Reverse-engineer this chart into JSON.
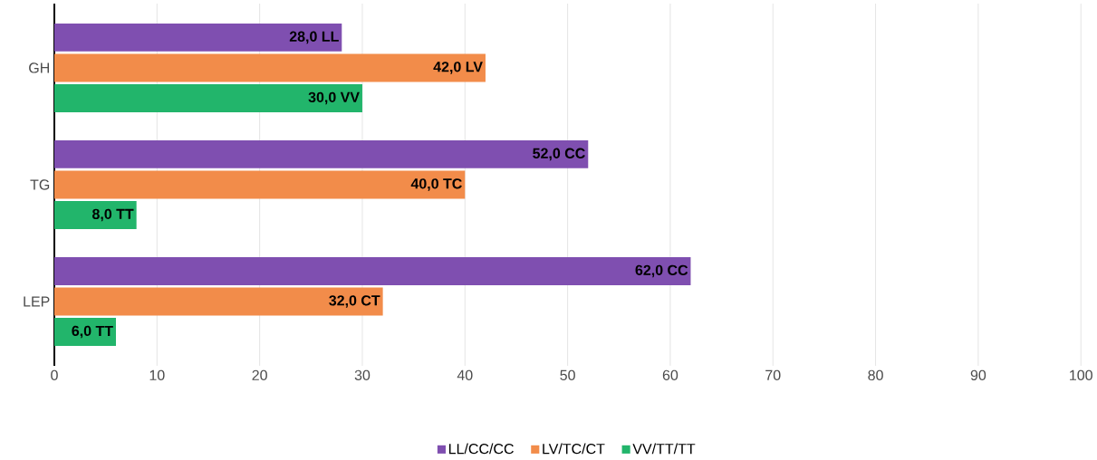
{
  "chart_data": {
    "type": "bar",
    "orientation": "horizontal",
    "categories": [
      "GH",
      "TG",
      "LEP"
    ],
    "series": [
      {
        "name": "LL/CC/CC",
        "color": "#7f4fb0",
        "values": [
          28,
          52,
          62
        ],
        "value_labels": [
          "28,0 LL",
          "52,0 CC",
          "62,0 CC"
        ]
      },
      {
        "name": "LV/TC/CT",
        "color": "#f28c4a",
        "values": [
          42,
          40,
          32
        ],
        "value_labels": [
          "42,0 LV",
          "40,0 TC",
          "32,0 CT"
        ]
      },
      {
        "name": "VV/TT/TT",
        "color": "#22b56b",
        "values": [
          30,
          8,
          6
        ],
        "value_labels": [
          "30,0 VV",
          "8,0 TT",
          "6,0 TT"
        ]
      }
    ],
    "xlim": [
      0,
      100
    ],
    "xticks": [
      0,
      10,
      20,
      30,
      40,
      50,
      60,
      70,
      80,
      90,
      100
    ],
    "grid": "x",
    "legend": "bottom"
  }
}
